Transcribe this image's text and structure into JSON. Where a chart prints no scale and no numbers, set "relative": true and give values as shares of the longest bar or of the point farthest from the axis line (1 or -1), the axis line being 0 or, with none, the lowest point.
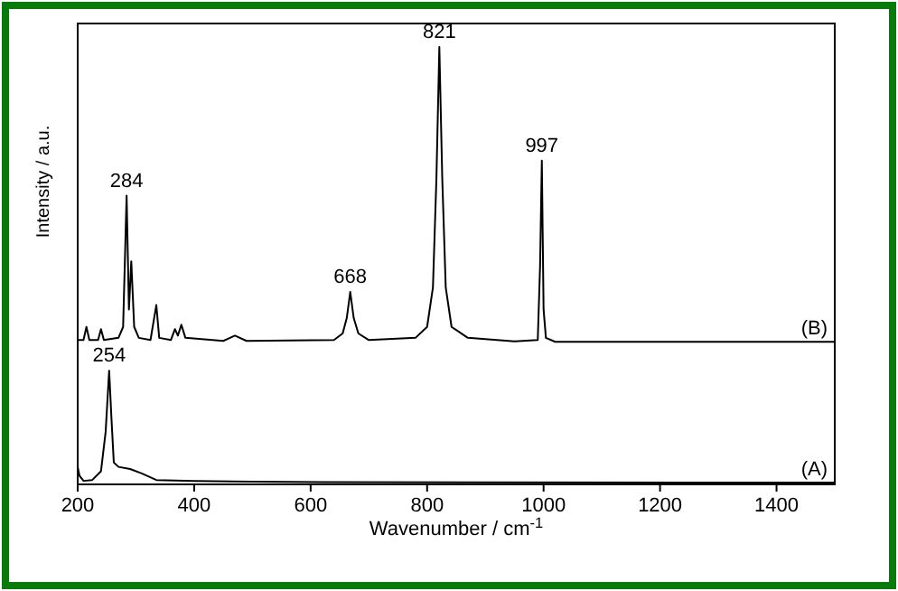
{
  "chart_data": {
    "type": "line",
    "relative": true,
    "xlabel": "Wavenumber / cm$^{-1}$",
    "ylabel": "Intensity / a.u.",
    "xlim": [
      200,
      1500
    ],
    "xticks": [
      200,
      400,
      600,
      800,
      1000,
      1200,
      1400
    ],
    "series": [
      {
        "name": "(B)",
        "color": "#000000",
        "x": [
          200,
          210,
          215,
          220,
          235,
          240,
          245,
          270,
          278,
          284,
          288,
          292,
          297,
          305,
          325,
          335,
          340,
          360,
          367,
          372,
          378,
          385,
          450,
          470,
          490,
          640,
          655,
          662,
          668,
          674,
          682,
          700,
          780,
          800,
          810,
          816,
          821,
          826,
          832,
          842,
          870,
          950,
          990,
          994,
          997,
          1000,
          1004,
          1020,
          1500
        ],
        "values": [
          0.33,
          0.33,
          0.36,
          0.33,
          0.33,
          0.355,
          0.33,
          0.335,
          0.36,
          0.66,
          0.4,
          0.51,
          0.36,
          0.335,
          0.33,
          0.41,
          0.335,
          0.33,
          0.355,
          0.34,
          0.365,
          0.335,
          0.328,
          0.34,
          0.328,
          0.33,
          0.345,
          0.38,
          0.44,
          0.38,
          0.345,
          0.33,
          0.335,
          0.36,
          0.45,
          0.7,
          1,
          0.7,
          0.45,
          0.36,
          0.335,
          0.327,
          0.33,
          0.5,
          0.74,
          0.4,
          0.335,
          0.326,
          0.326
        ]
      },
      {
        "name": "(A)",
        "color": "#000000",
        "x": [
          200,
          203,
          210,
          225,
          240,
          248,
          254,
          258,
          262,
          270,
          290,
          310,
          335,
          400,
          500,
          622,
          1500
        ],
        "values": [
          0.04,
          0.02,
          0.008,
          0.01,
          0.03,
          0.12,
          0.26,
          0.15,
          0.05,
          0.04,
          0.035,
          0.025,
          0.01,
          0.008,
          0.006,
          0.005,
          0.004
        ]
      }
    ],
    "annotations": [
      {
        "text": "254",
        "x": 254,
        "y": 0.26
      },
      {
        "text": "284",
        "x": 284,
        "y": 0.66
      },
      {
        "text": "668",
        "x": 668,
        "y": 0.44
      },
      {
        "text": "821",
        "x": 821,
        "y": 1
      },
      {
        "text": "997",
        "x": 997,
        "y": 0.74
      }
    ]
  }
}
